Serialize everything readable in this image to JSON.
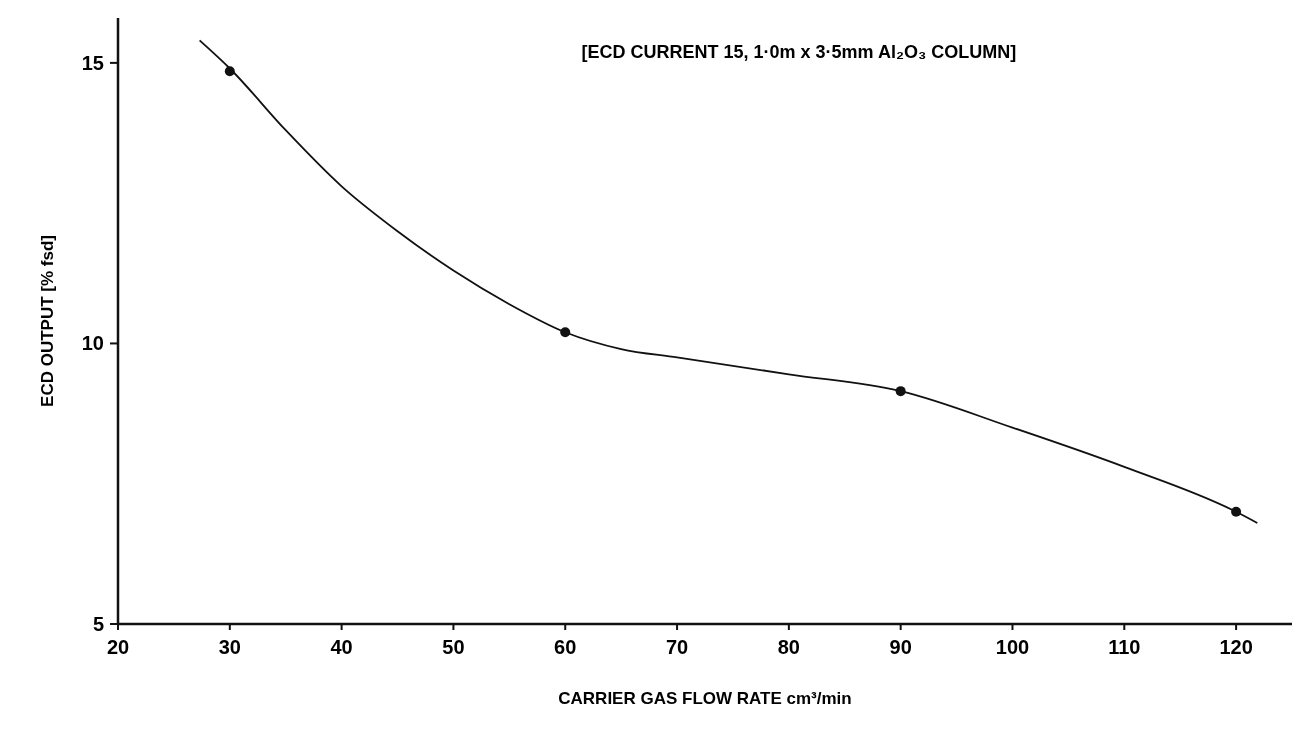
{
  "chart_data": {
    "type": "line",
    "title": "[ECD CURRENT 15, 1·0m x 3·5mm Al₂O₃ COLUMN]",
    "xlabel": "CARRIER GAS FLOW RATE cm³/min",
    "ylabel": "ECD OUTPUT [% fsd]",
    "xlim": [
      20,
      125
    ],
    "ylim": [
      5,
      15.8
    ],
    "xticks": [
      20,
      30,
      40,
      50,
      60,
      70,
      80,
      90,
      100,
      110,
      120
    ],
    "yticks": [
      5,
      10,
      15
    ],
    "series": [
      {
        "type": "line",
        "color": "#111111",
        "marker": "none",
        "x": [
          27.3,
          30,
          35,
          40,
          45,
          50,
          55,
          60,
          65,
          70,
          80,
          90,
          100,
          110,
          120,
          121.9
        ],
        "values": [
          15.4,
          14.9,
          13.8,
          12.8,
          12.0,
          11.3,
          10.7,
          10.2,
          9.9,
          9.75,
          9.45,
          9.15,
          8.5,
          7.8,
          7.0,
          6.8
        ]
      },
      {
        "type": "scatter",
        "color": "#111111",
        "marker": "circle",
        "x": [
          30,
          60,
          90,
          120
        ],
        "values": [
          14.85,
          10.2,
          9.15,
          7.0
        ]
      }
    ]
  }
}
